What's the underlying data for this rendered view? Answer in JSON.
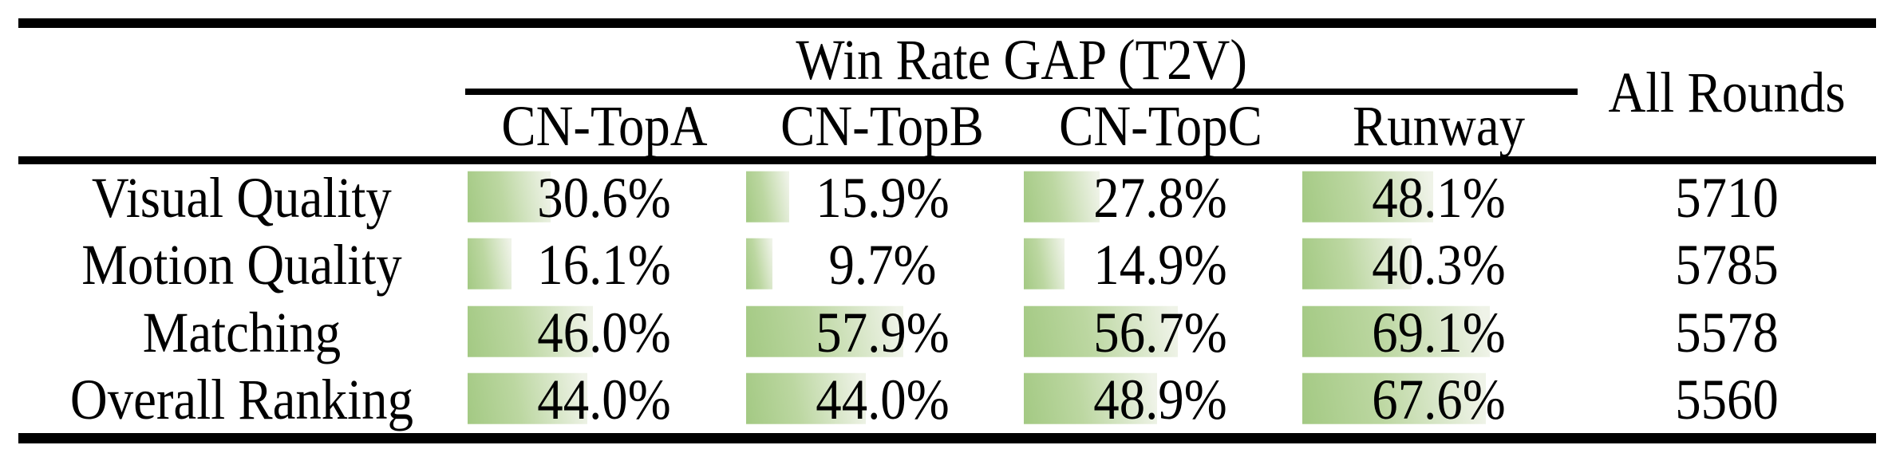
{
  "table": {
    "group_header": "Win Rate GAP (T2V)",
    "all_rounds_header": "All Rounds",
    "model_columns": [
      "CN-TopA",
      "CN-TopB",
      "CN-TopC",
      "Runway"
    ],
    "rows": [
      {
        "label": "Visual Quality",
        "gaps": [
          "30.6%",
          "15.9%",
          "27.8%",
          "48.1%"
        ],
        "all_rounds": "5710"
      },
      {
        "label": "Motion Quality",
        "gaps": [
          "16.1%",
          "9.7%",
          "14.9%",
          "40.3%"
        ],
        "all_rounds": "5785"
      },
      {
        "label": "Matching",
        "gaps": [
          "46.0%",
          "57.9%",
          "56.7%",
          "69.1%"
        ],
        "all_rounds": "5578"
      },
      {
        "label": "Overall Ranking",
        "gaps": [
          "44.0%",
          "44.0%",
          "48.9%",
          "67.6%"
        ],
        "all_rounds": "5560"
      }
    ],
    "bar_colors": {
      "start": "#a3c983",
      "mid": "#bcd7a1",
      "end": "#eff3e8"
    },
    "text_color": "#000000",
    "rule_color": "#000000"
  },
  "chart_data": {
    "type": "table",
    "title": "Win Rate GAP (T2V)",
    "columns": [
      "CN-TopA",
      "CN-TopB",
      "CN-TopC",
      "Runway",
      "All Rounds"
    ],
    "row_labels": [
      "Visual Quality",
      "Motion Quality",
      "Matching",
      "Overall Ranking"
    ],
    "series": [
      {
        "name": "CN-TopA",
        "values": [
          30.6,
          16.1,
          46.0,
          44.0
        ]
      },
      {
        "name": "CN-TopB",
        "values": [
          15.9,
          9.7,
          57.9,
          44.0
        ]
      },
      {
        "name": "CN-TopC",
        "values": [
          27.8,
          14.9,
          56.7,
          48.9
        ]
      },
      {
        "name": "Runway",
        "values": [
          48.1,
          40.3,
          69.1,
          67.6
        ]
      }
    ],
    "all_rounds": [
      5710,
      5785,
      5578,
      5560
    ],
    "units": "percent",
    "note": "green in-cell data bars are left-aligned with width proportional to the percentage value"
  }
}
